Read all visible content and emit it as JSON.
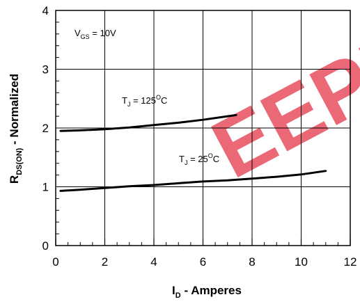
{
  "chart_data": {
    "type": "line",
    "xlabel": {
      "main": "I",
      "sub": "D",
      "rest": " - Amperes"
    },
    "ylabel": {
      "main": "R",
      "sub": "DS(ON)",
      "rest": " - Normalized"
    },
    "xlim": [
      0,
      12
    ],
    "ylim": [
      0,
      4
    ],
    "x_ticks": [
      "0",
      "2",
      "4",
      "6",
      "8",
      "10",
      "12"
    ],
    "y_ticks": [
      "0",
      "1",
      "2",
      "3",
      "4"
    ],
    "grid": true,
    "annotations": {
      "vgs": {
        "main": "V",
        "sub": "GS",
        "rest": " = 10V"
      },
      "tj125": {
        "main": "T",
        "sub": "J",
        "eq": " = 125",
        "sup": "O",
        "unit": "C"
      },
      "tj25": {
        "main": "T",
        "sub": "J",
        "eq": " = 25",
        "sup": "O",
        "unit": "C"
      }
    },
    "series": [
      {
        "x": [
          0.2,
          1,
          2,
          3,
          4,
          5,
          6,
          7,
          7.35
        ],
        "y": [
          1.95,
          1.96,
          1.98,
          2.01,
          2.05,
          2.09,
          2.14,
          2.2,
          2.22
        ]
      },
      {
        "x": [
          0.2,
          1,
          2,
          3,
          4,
          5,
          6,
          7,
          8,
          9,
          10,
          11
        ],
        "y": [
          0.93,
          0.95,
          0.98,
          1.01,
          1.03,
          1.06,
          1.09,
          1.11,
          1.14,
          1.17,
          1.21,
          1.27
        ]
      }
    ],
    "line_color": "#000000",
    "watermark_text": "EEPM",
    "watermark_color": "#e8505f"
  }
}
